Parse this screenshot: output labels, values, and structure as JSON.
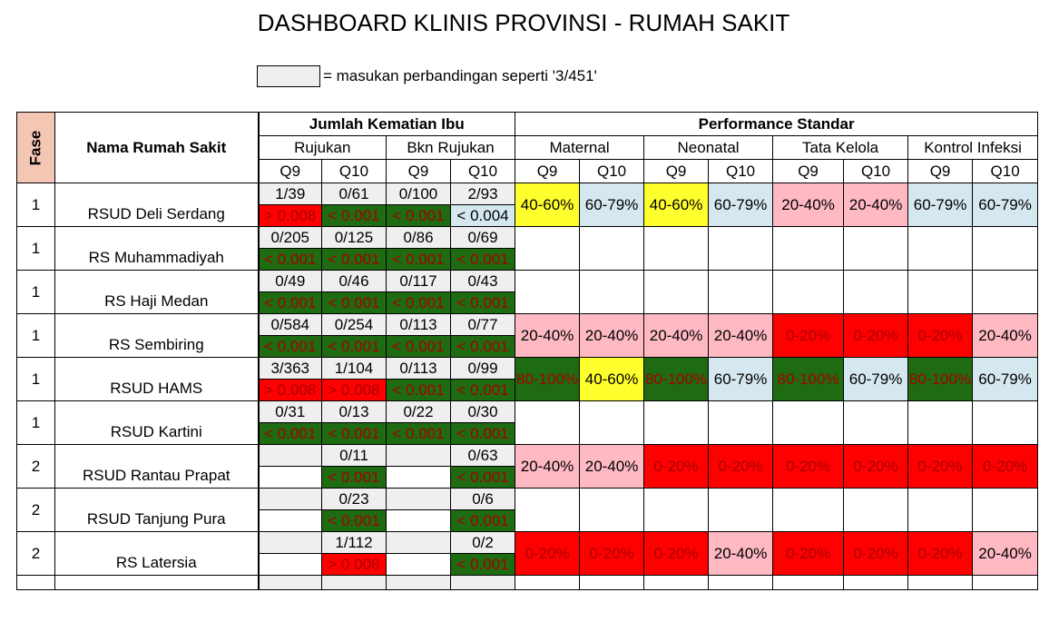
{
  "title": "DASHBOARD KLINIS PROVINSI - RUMAH SAKIT",
  "legend": {
    "text": "= masukan perbandingan seperti '3/451'"
  },
  "headers": {
    "fase": "Fase",
    "nama": "Nama Rumah Sakit",
    "jumlah": "Jumlah Kematian Ibu",
    "performance": "Performance  Standar",
    "rujukan": "Rujukan",
    "bkn_rujukan": "Bkn Rujukan",
    "maternal": "Maternal",
    "neonatal": "Neonatal",
    "tata_kelola": "Tata Kelola",
    "kontrol_infeksi": "Kontrol Infeksi",
    "quarters": [
      "Q9",
      "Q10",
      "Q9",
      "Q10",
      "Q9",
      "Q10",
      "Q9",
      "Q10",
      "Q9",
      "Q10",
      "Q9",
      "Q10"
    ]
  },
  "colors": {
    "red": "#ff0000",
    "green": "#1e6b12",
    "yellow": "#ffff2e",
    "pink": "#ffb9c3",
    "blue": "#d6e8ef",
    "input_grey": "#efefef"
  },
  "rows": [
    {
      "fase": "1",
      "name": "RSUD Deli Serdang",
      "fractions": [
        "1/39",
        "0/61",
        "0/100",
        "2/93"
      ],
      "pvalues": [
        {
          "text": "> 0.008",
          "color": "red"
        },
        {
          "text": "< 0.001",
          "color": "green"
        },
        {
          "text": "< 0.001",
          "color": "green"
        },
        {
          "text": "< 0.004",
          "color": "blue"
        }
      ],
      "perf": [
        {
          "text": "40-60%",
          "color": "yellow"
        },
        {
          "text": "60-79%",
          "color": "blue"
        },
        {
          "text": "40-60%",
          "color": "yellow"
        },
        {
          "text": "60-79%",
          "color": "blue"
        },
        {
          "text": "20-40%",
          "color": "pink"
        },
        {
          "text": "20-40%",
          "color": "pink"
        },
        {
          "text": "60-79%",
          "color": "blue"
        },
        {
          "text": "60-79%",
          "color": "blue"
        }
      ]
    },
    {
      "fase": "1",
      "name": "RS Muhammadiyah",
      "fractions": [
        "0/205",
        "0/125",
        "0/86",
        "0/69"
      ],
      "pvalues": [
        {
          "text": "< 0.001",
          "color": "green"
        },
        {
          "text": "< 0.001",
          "color": "green"
        },
        {
          "text": "< 0.001",
          "color": "green"
        },
        {
          "text": "< 0.001",
          "color": "green"
        }
      ],
      "perf": [
        {
          "text": "",
          "color": ""
        },
        {
          "text": "",
          "color": ""
        },
        {
          "text": "",
          "color": ""
        },
        {
          "text": "",
          "color": ""
        },
        {
          "text": "",
          "color": ""
        },
        {
          "text": "",
          "color": ""
        },
        {
          "text": "",
          "color": ""
        },
        {
          "text": "",
          "color": ""
        }
      ]
    },
    {
      "fase": "1",
      "name": "RS Haji Medan",
      "fractions": [
        "0/49",
        "0/46",
        "0/117",
        "0/43"
      ],
      "pvalues": [
        {
          "text": "< 0.001",
          "color": "green"
        },
        {
          "text": "< 0.001",
          "color": "green"
        },
        {
          "text": "< 0.001",
          "color": "green"
        },
        {
          "text": "< 0.001",
          "color": "green"
        }
      ],
      "perf": [
        {
          "text": "",
          "color": ""
        },
        {
          "text": "",
          "color": ""
        },
        {
          "text": "",
          "color": ""
        },
        {
          "text": "",
          "color": ""
        },
        {
          "text": "",
          "color": ""
        },
        {
          "text": "",
          "color": ""
        },
        {
          "text": "",
          "color": ""
        },
        {
          "text": "",
          "color": ""
        }
      ]
    },
    {
      "fase": "1",
      "name": "RS Sembiring",
      "fractions": [
        "0/584",
        "0/254",
        "0/113",
        "0/77"
      ],
      "pvalues": [
        {
          "text": "< 0.001",
          "color": "green"
        },
        {
          "text": "< 0.001",
          "color": "green"
        },
        {
          "text": "< 0.001",
          "color": "green"
        },
        {
          "text": "< 0.001",
          "color": "green"
        }
      ],
      "perf": [
        {
          "text": "20-40%",
          "color": "pink"
        },
        {
          "text": "20-40%",
          "color": "pink"
        },
        {
          "text": "20-40%",
          "color": "pink"
        },
        {
          "text": "20-40%",
          "color": "pink"
        },
        {
          "text": "0-20%",
          "color": "red"
        },
        {
          "text": "0-20%",
          "color": "red"
        },
        {
          "text": "0-20%",
          "color": "red"
        },
        {
          "text": "20-40%",
          "color": "pink"
        }
      ]
    },
    {
      "fase": "1",
      "name": "RSUD HAMS",
      "fractions": [
        "3/363",
        "1/104",
        "0/113",
        "0/99"
      ],
      "pvalues": [
        {
          "text": "> 0.008",
          "color": "red"
        },
        {
          "text": "> 0.008",
          "color": "red"
        },
        {
          "text": "< 0.001",
          "color": "green"
        },
        {
          "text": "< 0.001",
          "color": "green"
        }
      ],
      "perf": [
        {
          "text": "80-100%",
          "color": "green"
        },
        {
          "text": "40-60%",
          "color": "yellow"
        },
        {
          "text": "80-100%",
          "color": "green"
        },
        {
          "text": "60-79%",
          "color": "blue"
        },
        {
          "text": "80-100%",
          "color": "green"
        },
        {
          "text": "60-79%",
          "color": "blue"
        },
        {
          "text": "80-100%",
          "color": "green"
        },
        {
          "text": "60-79%",
          "color": "blue"
        }
      ]
    },
    {
      "fase": "1",
      "name": "RSUD Kartini",
      "fractions": [
        "0/31",
        "0/13",
        "0/22",
        "0/30"
      ],
      "pvalues": [
        {
          "text": "< 0.001",
          "color": "green"
        },
        {
          "text": "< 0.001",
          "color": "green"
        },
        {
          "text": "< 0.001",
          "color": "green"
        },
        {
          "text": "< 0.001",
          "color": "green"
        }
      ],
      "perf": [
        {
          "text": "",
          "color": ""
        },
        {
          "text": "",
          "color": ""
        },
        {
          "text": "",
          "color": ""
        },
        {
          "text": "",
          "color": ""
        },
        {
          "text": "",
          "color": ""
        },
        {
          "text": "",
          "color": ""
        },
        {
          "text": "",
          "color": ""
        },
        {
          "text": "",
          "color": ""
        }
      ]
    },
    {
      "fase": "2",
      "name": "RSUD Rantau Prapat",
      "fractions": [
        "",
        "0/11",
        "",
        "0/63"
      ],
      "pvalues": [
        {
          "text": "",
          "color": ""
        },
        {
          "text": "< 0.001",
          "color": "green"
        },
        {
          "text": "",
          "color": ""
        },
        {
          "text": "< 0.001",
          "color": "green"
        }
      ],
      "perf": [
        {
          "text": "20-40%",
          "color": "pink"
        },
        {
          "text": "20-40%",
          "color": "pink"
        },
        {
          "text": "0-20%",
          "color": "red"
        },
        {
          "text": "0-20%",
          "color": "red"
        },
        {
          "text": "0-20%",
          "color": "red"
        },
        {
          "text": "0-20%",
          "color": "red"
        },
        {
          "text": "0-20%",
          "color": "red"
        },
        {
          "text": "0-20%",
          "color": "red"
        }
      ]
    },
    {
      "fase": "2",
      "name": "RSUD Tanjung Pura",
      "fractions": [
        "",
        "0/23",
        "",
        "0/6"
      ],
      "pvalues": [
        {
          "text": "",
          "color": ""
        },
        {
          "text": "< 0.001",
          "color": "green"
        },
        {
          "text": "",
          "color": ""
        },
        {
          "text": "< 0.001",
          "color": "green"
        }
      ],
      "perf": [
        {
          "text": "",
          "color": ""
        },
        {
          "text": "",
          "color": ""
        },
        {
          "text": "",
          "color": ""
        },
        {
          "text": "",
          "color": ""
        },
        {
          "text": "",
          "color": ""
        },
        {
          "text": "",
          "color": ""
        },
        {
          "text": "",
          "color": ""
        },
        {
          "text": "",
          "color": ""
        }
      ]
    },
    {
      "fase": "2",
      "name": "RS Latersia",
      "fractions": [
        "",
        "1/112",
        "",
        "0/2"
      ],
      "pvalues": [
        {
          "text": "",
          "color": ""
        },
        {
          "text": "> 0.008",
          "color": "red"
        },
        {
          "text": "",
          "color": ""
        },
        {
          "text": "< 0.001",
          "color": "green"
        }
      ],
      "perf": [
        {
          "text": "0-20%",
          "color": "red"
        },
        {
          "text": "0-20%",
          "color": "red"
        },
        {
          "text": "0-20%",
          "color": "red"
        },
        {
          "text": "20-40%",
          "color": "pink"
        },
        {
          "text": "0-20%",
          "color": "red"
        },
        {
          "text": "0-20%",
          "color": "red"
        },
        {
          "text": "0-20%",
          "color": "red"
        },
        {
          "text": "20-40%",
          "color": "pink"
        }
      ]
    }
  ]
}
